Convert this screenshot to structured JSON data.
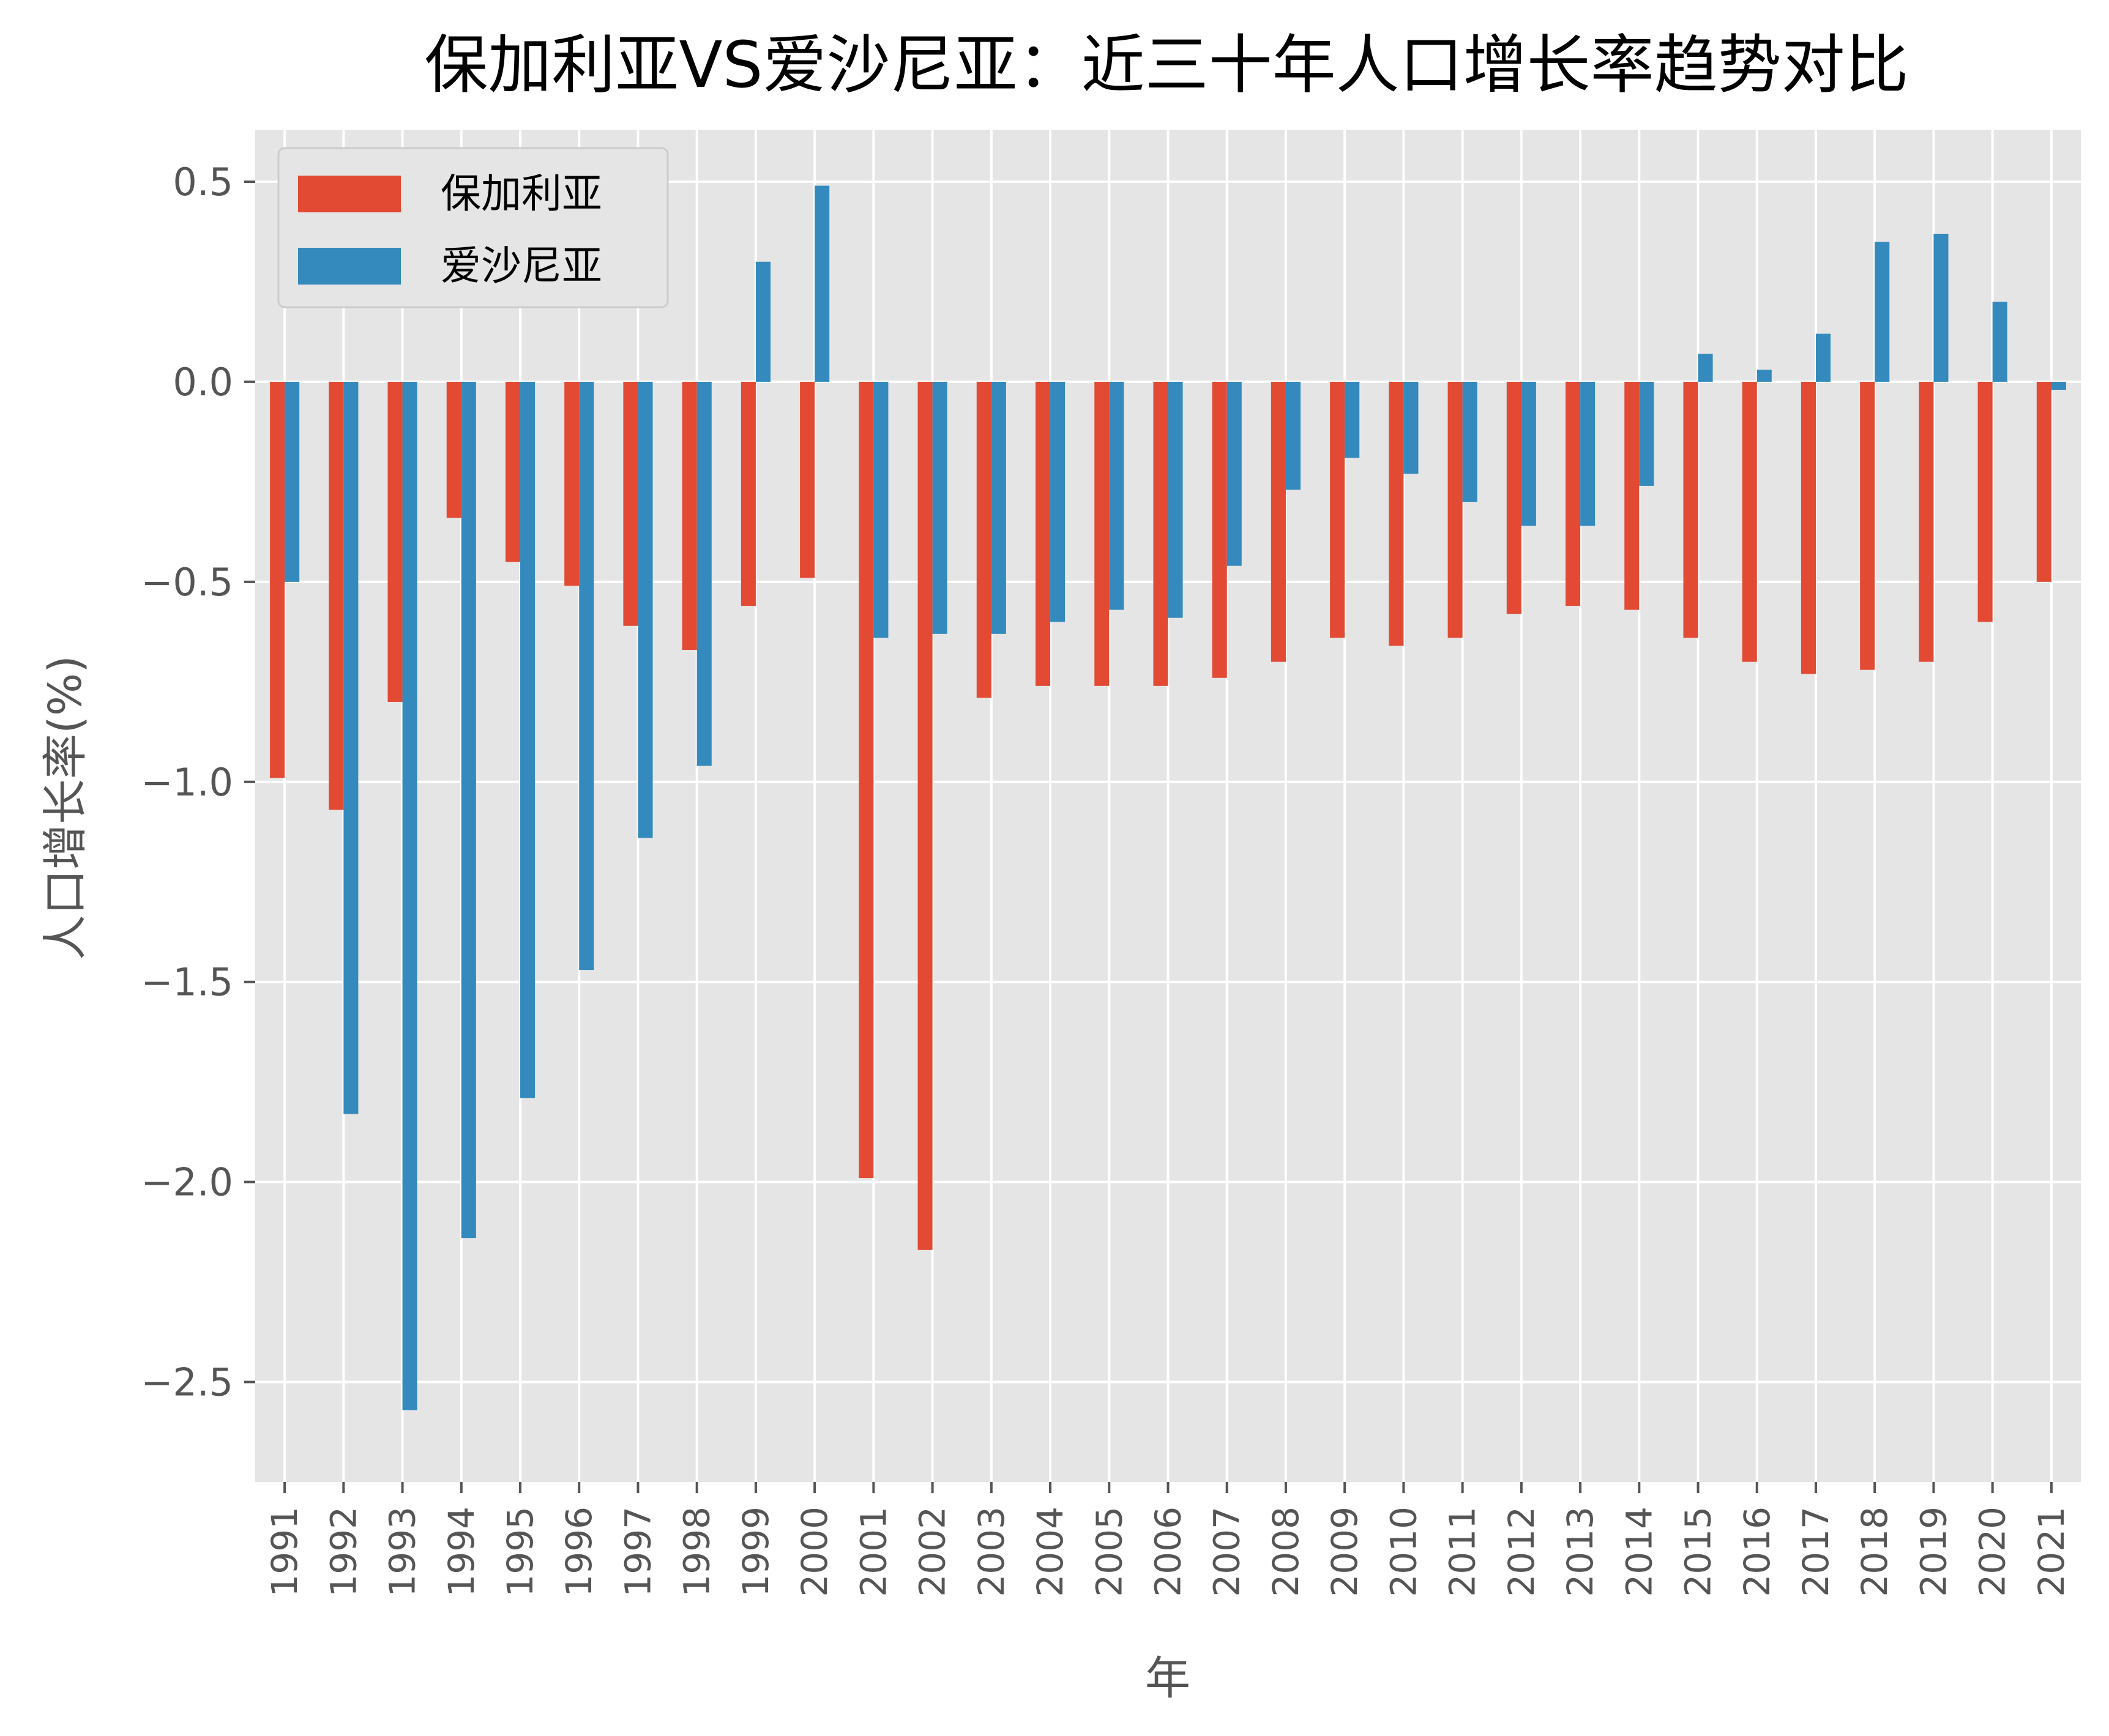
{
  "chart_data": {
    "type": "bar",
    "title": "保加利亚VS爱沙尼亚：近三十年人口增长率趋势对比",
    "xlabel": "年",
    "ylabel": "人口增长率(%)",
    "ylim": [
      -2.75,
      0.63
    ],
    "yticks": [
      -2.5,
      -2.0,
      -1.5,
      -1.0,
      -0.5,
      0.0,
      0.5
    ],
    "ytick_labels": [
      "−2.5",
      "−2.0",
      "−1.5",
      "−1.0",
      "−0.5",
      "0.0",
      "0.5"
    ],
    "grid": true,
    "legend_position": "top-left",
    "categories": [
      "1991",
      "1992",
      "1993",
      "1994",
      "1995",
      "1996",
      "1997",
      "1998",
      "1999",
      "2000",
      "2001",
      "2002",
      "2003",
      "2004",
      "2005",
      "2006",
      "2007",
      "2008",
      "2009",
      "2010",
      "2011",
      "2012",
      "2013",
      "2014",
      "2015",
      "2016",
      "2017",
      "2018",
      "2019",
      "2020",
      "2021"
    ],
    "series": [
      {
        "name": "保加利亚",
        "color": "#e24a33",
        "values": [
          -0.99,
          -1.07,
          -0.8,
          -0.34,
          -0.45,
          -0.51,
          -0.61,
          -0.67,
          -0.56,
          -0.49,
          -1.99,
          -2.17,
          -0.79,
          -0.76,
          -0.76,
          -0.76,
          -0.74,
          -0.7,
          -0.64,
          -0.66,
          -0.64,
          -0.58,
          -0.56,
          -0.57,
          -0.64,
          -0.7,
          -0.73,
          -0.72,
          -0.7,
          -0.6,
          -0.5
        ]
      },
      {
        "name": "爱沙尼亚",
        "color": "#348abd",
        "values": [
          -0.5,
          -1.83,
          -2.57,
          -2.14,
          -1.79,
          -1.47,
          -1.14,
          -0.96,
          0.3,
          0.49,
          -0.64,
          -0.63,
          -0.63,
          -0.6,
          -0.57,
          -0.59,
          -0.46,
          -0.27,
          -0.19,
          -0.23,
          -0.3,
          -0.36,
          -0.36,
          -0.26,
          0.07,
          0.03,
          0.12,
          0.35,
          0.37,
          0.2,
          -0.02
        ]
      }
    ]
  }
}
